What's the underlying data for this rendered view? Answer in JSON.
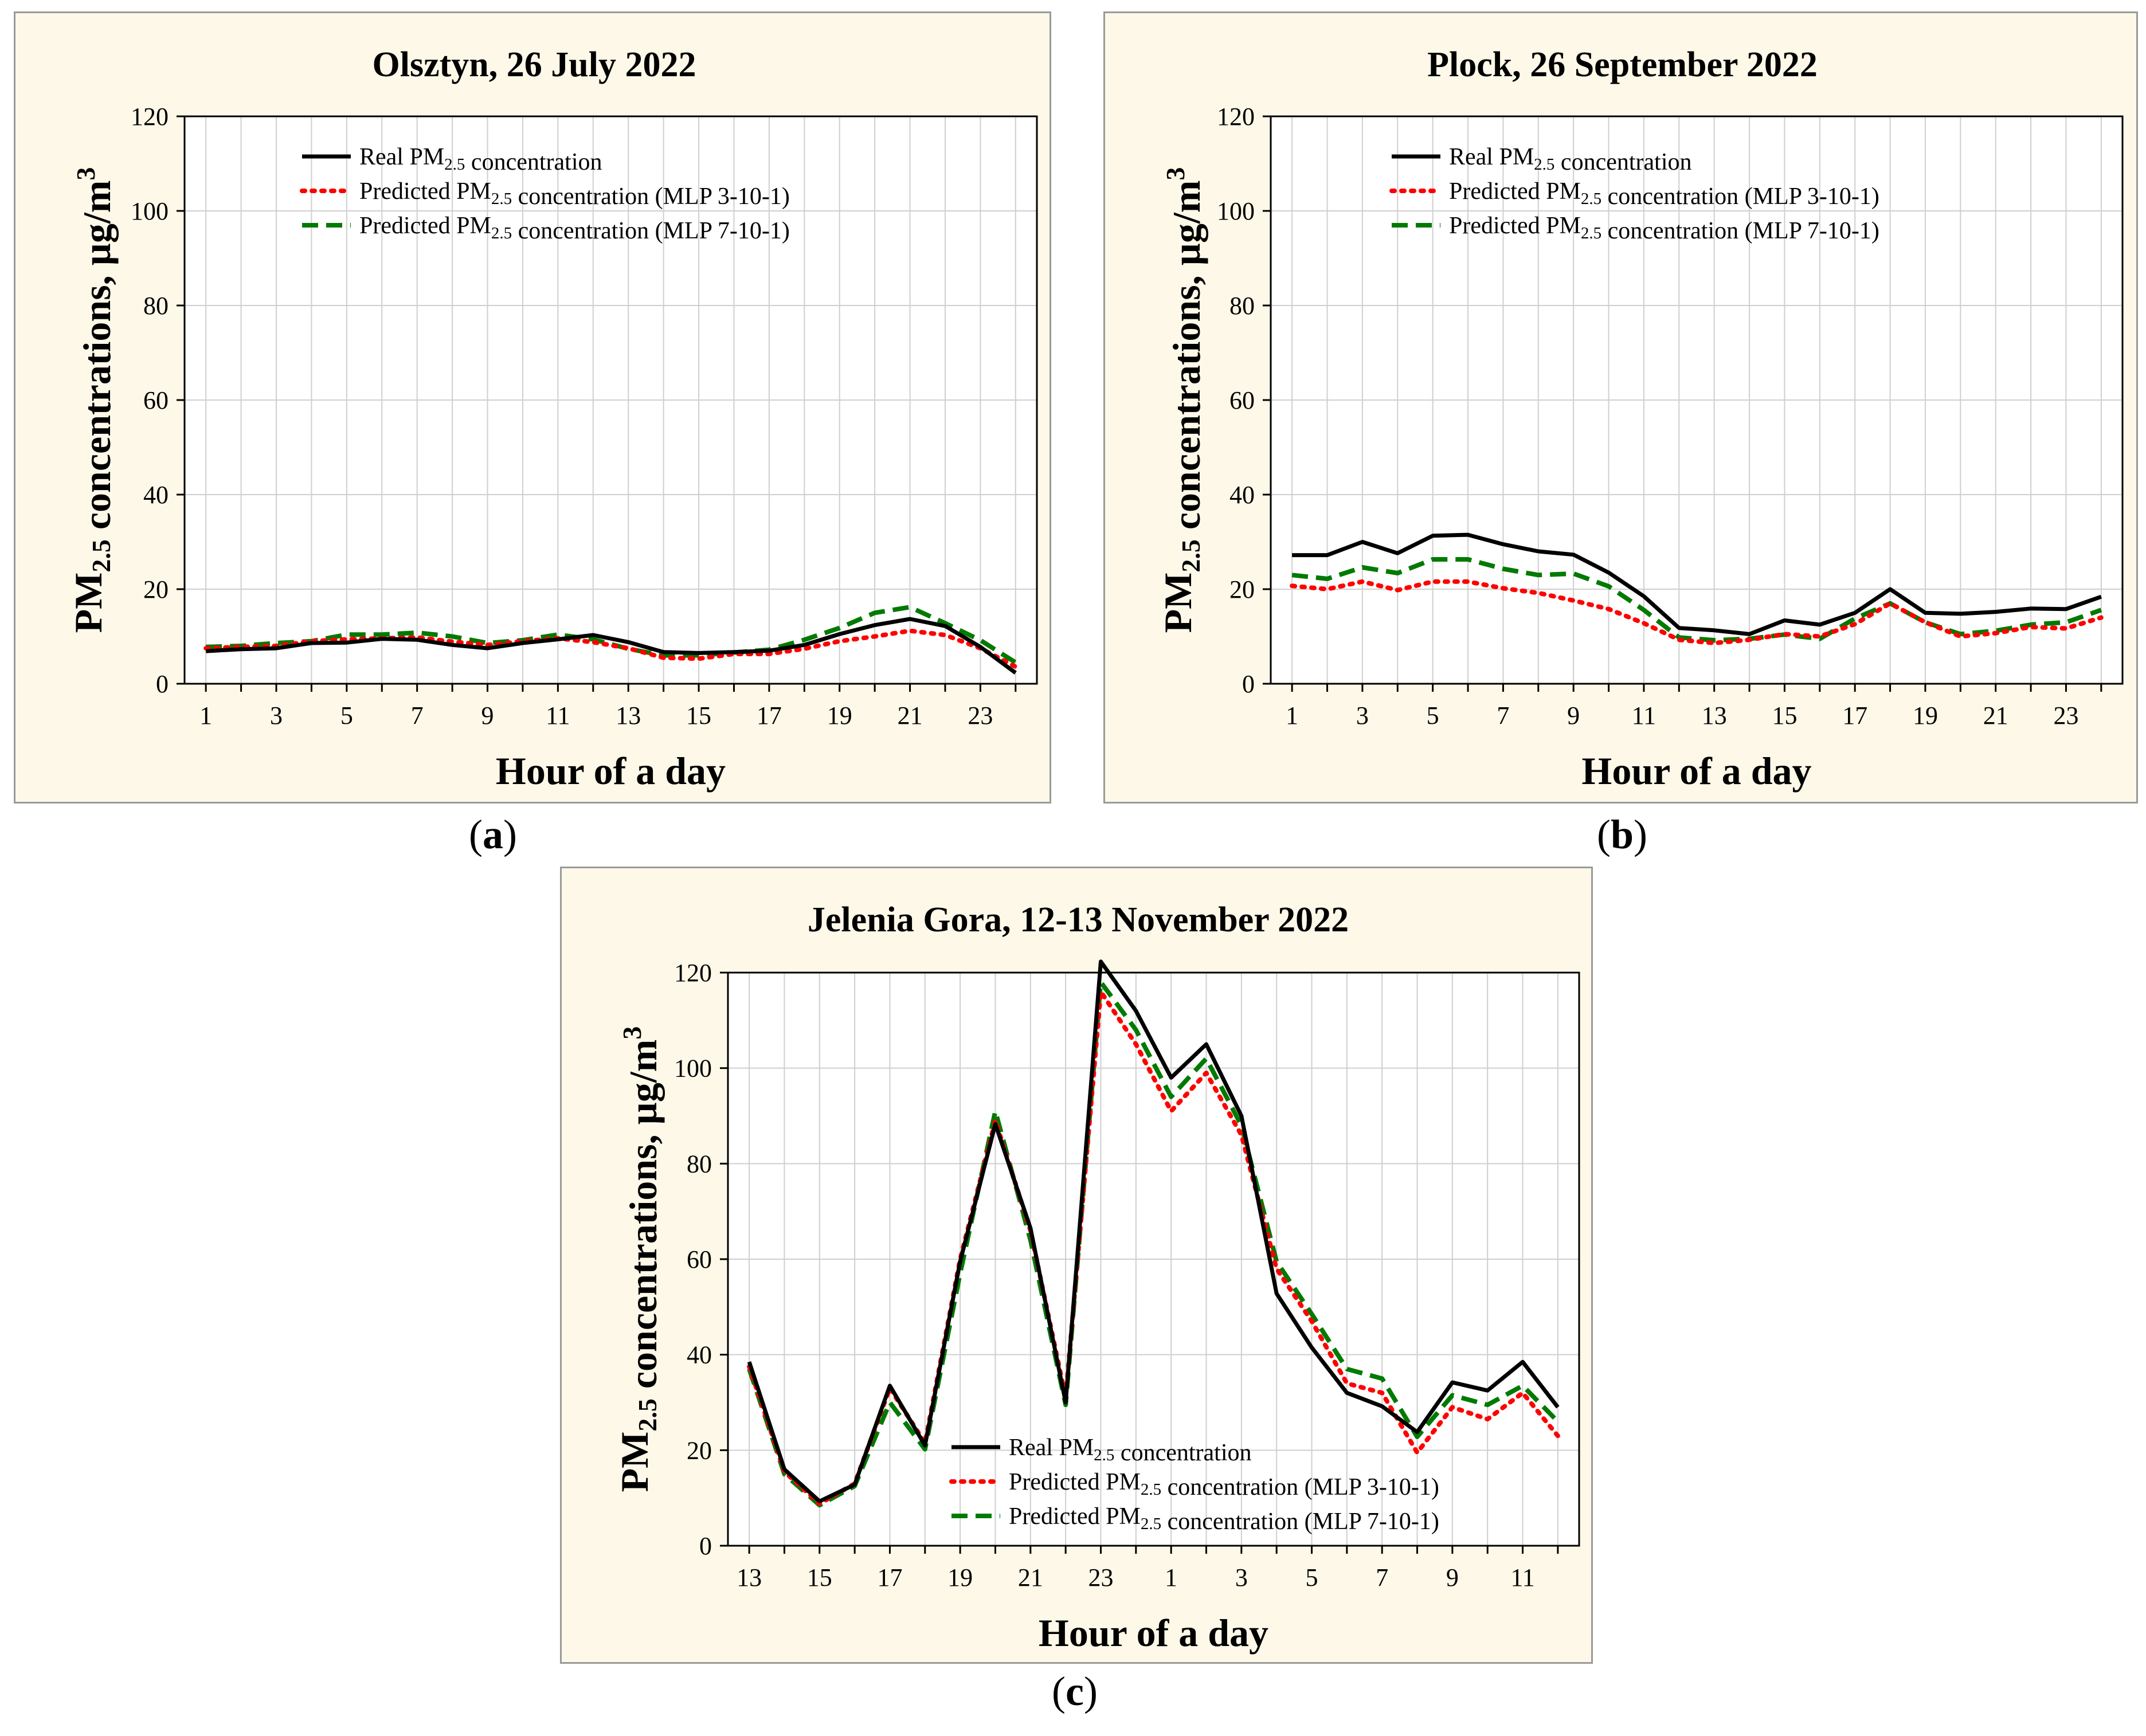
{
  "colors": {
    "real": "#000000",
    "mlp3": "#ff0000",
    "mlp7": "#007a00",
    "panel_bg": "#fdf8e8",
    "grid": "#cfcfcf"
  },
  "captions": {
    "a": "a",
    "b": "b",
    "c": "c"
  },
  "chart_data": [
    {
      "id": "a",
      "type": "line",
      "title": "Olsztyn, 26 July 2022",
      "xlabel": "Hour of a day",
      "ylabel": "PM2.5 concentrations, µg/m3",
      "ylim": [
        0,
        120
      ],
      "yticks": [
        0,
        20,
        40,
        60,
        80,
        100,
        120
      ],
      "categories": [
        "1",
        "2",
        "3",
        "4",
        "5",
        "6",
        "7",
        "8",
        "9",
        "10",
        "11",
        "12",
        "13",
        "14",
        "15",
        "16",
        "17",
        "18",
        "19",
        "20",
        "21",
        "22",
        "23",
        "24"
      ],
      "tick_labels": [
        "1",
        "",
        "3",
        "",
        "5",
        "",
        "7",
        "",
        "9",
        "",
        "11",
        "",
        "13",
        "",
        "15",
        "",
        "17",
        "",
        "19",
        "",
        "21",
        "",
        "23",
        ""
      ],
      "grid": true,
      "legend": "top-center",
      "series": [
        {
          "key": "real",
          "name": "Real PM2.5 concentration",
          "values": [
            6.9,
            7.3,
            7.5,
            8.6,
            8.7,
            9.5,
            9.3,
            8.2,
            7.5,
            8.6,
            9.4,
            10.3,
            8.8,
            6.7,
            6.5,
            6.7,
            7.0,
            8.2,
            10.5,
            12.4,
            13.7,
            12.2,
            7.8,
            2.3
          ]
        },
        {
          "key": "mlp3",
          "name": "Predicted PM2.5 concentration (MLP 3-10-1)",
          "values": [
            7.5,
            7.8,
            8.0,
            9.0,
            9.4,
            9.6,
            9.8,
            8.9,
            8.2,
            9.0,
            9.6,
            8.8,
            7.5,
            5.5,
            5.3,
            6.3,
            6.3,
            7.4,
            9.0,
            10.0,
            11.2,
            10.3,
            7.5,
            3.6
          ]
        },
        {
          "key": "mlp7",
          "name": "Predicted PM2.5 concentration (MLP 7-10-1)",
          "values": [
            7.8,
            8.0,
            8.6,
            9.0,
            10.4,
            10.4,
            10.8,
            10.0,
            8.6,
            9.2,
            10.4,
            9.4,
            7.4,
            6.0,
            6.0,
            6.6,
            7.2,
            9.3,
            11.8,
            15.0,
            16.2,
            12.8,
            9.2,
            4.5
          ]
        }
      ]
    },
    {
      "id": "b",
      "type": "line",
      "title": "Plock, 26 September 2022",
      "xlabel": "Hour of a day",
      "ylabel": "PM2.5 concentrations, µg/m3",
      "ylim": [
        0,
        120
      ],
      "yticks": [
        0,
        20,
        40,
        60,
        80,
        100,
        120
      ],
      "categories": [
        "1",
        "2",
        "3",
        "4",
        "5",
        "6",
        "7",
        "8",
        "9",
        "10",
        "11",
        "12",
        "13",
        "14",
        "15",
        "16",
        "17",
        "18",
        "19",
        "20",
        "21",
        "22",
        "23",
        "24"
      ],
      "tick_labels": [
        "1",
        "",
        "3",
        "",
        "5",
        "",
        "7",
        "",
        "9",
        "",
        "11",
        "",
        "13",
        "",
        "15",
        "",
        "17",
        "",
        "19",
        "",
        "21",
        "",
        "23",
        ""
      ],
      "grid": true,
      "legend": "top-center",
      "series": [
        {
          "key": "real",
          "name": "Real PM2.5 concentration",
          "values": [
            27.2,
            27.2,
            30.0,
            27.6,
            31.3,
            31.5,
            29.5,
            28.0,
            27.3,
            23.5,
            18.5,
            11.8,
            11.3,
            10.5,
            13.4,
            12.5,
            15.0,
            20.0,
            15.0,
            14.8,
            15.2,
            15.9,
            15.8,
            18.4
          ]
        },
        {
          "key": "mlp3",
          "name": "Predicted PM2.5 concentration (MLP 3-10-1)",
          "values": [
            20.7,
            20.0,
            21.6,
            19.8,
            21.6,
            21.6,
            20.2,
            19.2,
            17.6,
            15.8,
            12.8,
            9.3,
            8.6,
            9.3,
            10.5,
            10.0,
            12.6,
            17.0,
            13.0,
            10.0,
            10.7,
            12.0,
            11.7,
            14.0
          ]
        },
        {
          "key": "mlp7",
          "name": "Predicted PM2.5 concentration (MLP 7-10-1)",
          "values": [
            23.0,
            22.2,
            24.6,
            23.4,
            26.3,
            26.3,
            24.3,
            23.0,
            23.3,
            20.6,
            15.6,
            9.8,
            9.2,
            9.5,
            10.4,
            9.5,
            13.8,
            17.0,
            13.0,
            10.5,
            11.2,
            12.5,
            13.0,
            15.6
          ]
        }
      ]
    },
    {
      "id": "c",
      "type": "line",
      "title": "Jelenia Gora, 12-13 November 2022",
      "xlabel": "Hour of a day",
      "ylabel": "PM2.5 concentrations, µg/m3",
      "ylim": [
        0,
        120
      ],
      "yticks": [
        0,
        20,
        40,
        60,
        80,
        100,
        120
      ],
      "categories": [
        "13",
        "14",
        "15",
        "16",
        "17",
        "18",
        "19",
        "20",
        "21",
        "22",
        "23",
        "24",
        "1",
        "2",
        "3",
        "4",
        "5",
        "6",
        "7",
        "8",
        "9",
        "10",
        "11",
        "12"
      ],
      "tick_labels": [
        "13",
        "",
        "15",
        "",
        "17",
        "",
        "19",
        "",
        "21",
        "",
        "23",
        "",
        "1",
        "",
        "3",
        "",
        "5",
        "",
        "7",
        "",
        "9",
        "",
        "11",
        ""
      ],
      "grid": true,
      "legend": "bottom-right",
      "series": [
        {
          "key": "real",
          "name": "Real PM2.5 concentration",
          "values": [
            38.5,
            16.0,
            9.3,
            12.8,
            33.5,
            21.0,
            59.5,
            88.3,
            66.5,
            30.0,
            122.3,
            112.0,
            98.0,
            105.0,
            90.0,
            52.8,
            41.5,
            32.0,
            29.2,
            23.8,
            34.2,
            32.5,
            38.5,
            29.0
          ]
        },
        {
          "key": "mlp3",
          "name": "Predicted PM2.5 concentration (MLP 3-10-1)",
          "values": [
            37.5,
            15.5,
            8.8,
            13.0,
            33.0,
            21.5,
            60.0,
            89.0,
            66.0,
            31.0,
            116.0,
            105.0,
            91.0,
            99.0,
            86.0,
            58.0,
            47.0,
            34.0,
            32.0,
            19.5,
            29.0,
            26.5,
            32.0,
            23.0
          ]
        },
        {
          "key": "mlp7",
          "name": "Predicted PM2.5 concentration (MLP 7-10-1)",
          "values": [
            37.0,
            15.0,
            8.5,
            12.5,
            30.0,
            20.2,
            57.0,
            91.0,
            64.0,
            29.5,
            118.0,
            108.0,
            94.0,
            102.0,
            88.0,
            59.5,
            48.5,
            37.0,
            35.0,
            22.8,
            31.5,
            29.5,
            33.5,
            26.0
          ]
        }
      ]
    }
  ]
}
